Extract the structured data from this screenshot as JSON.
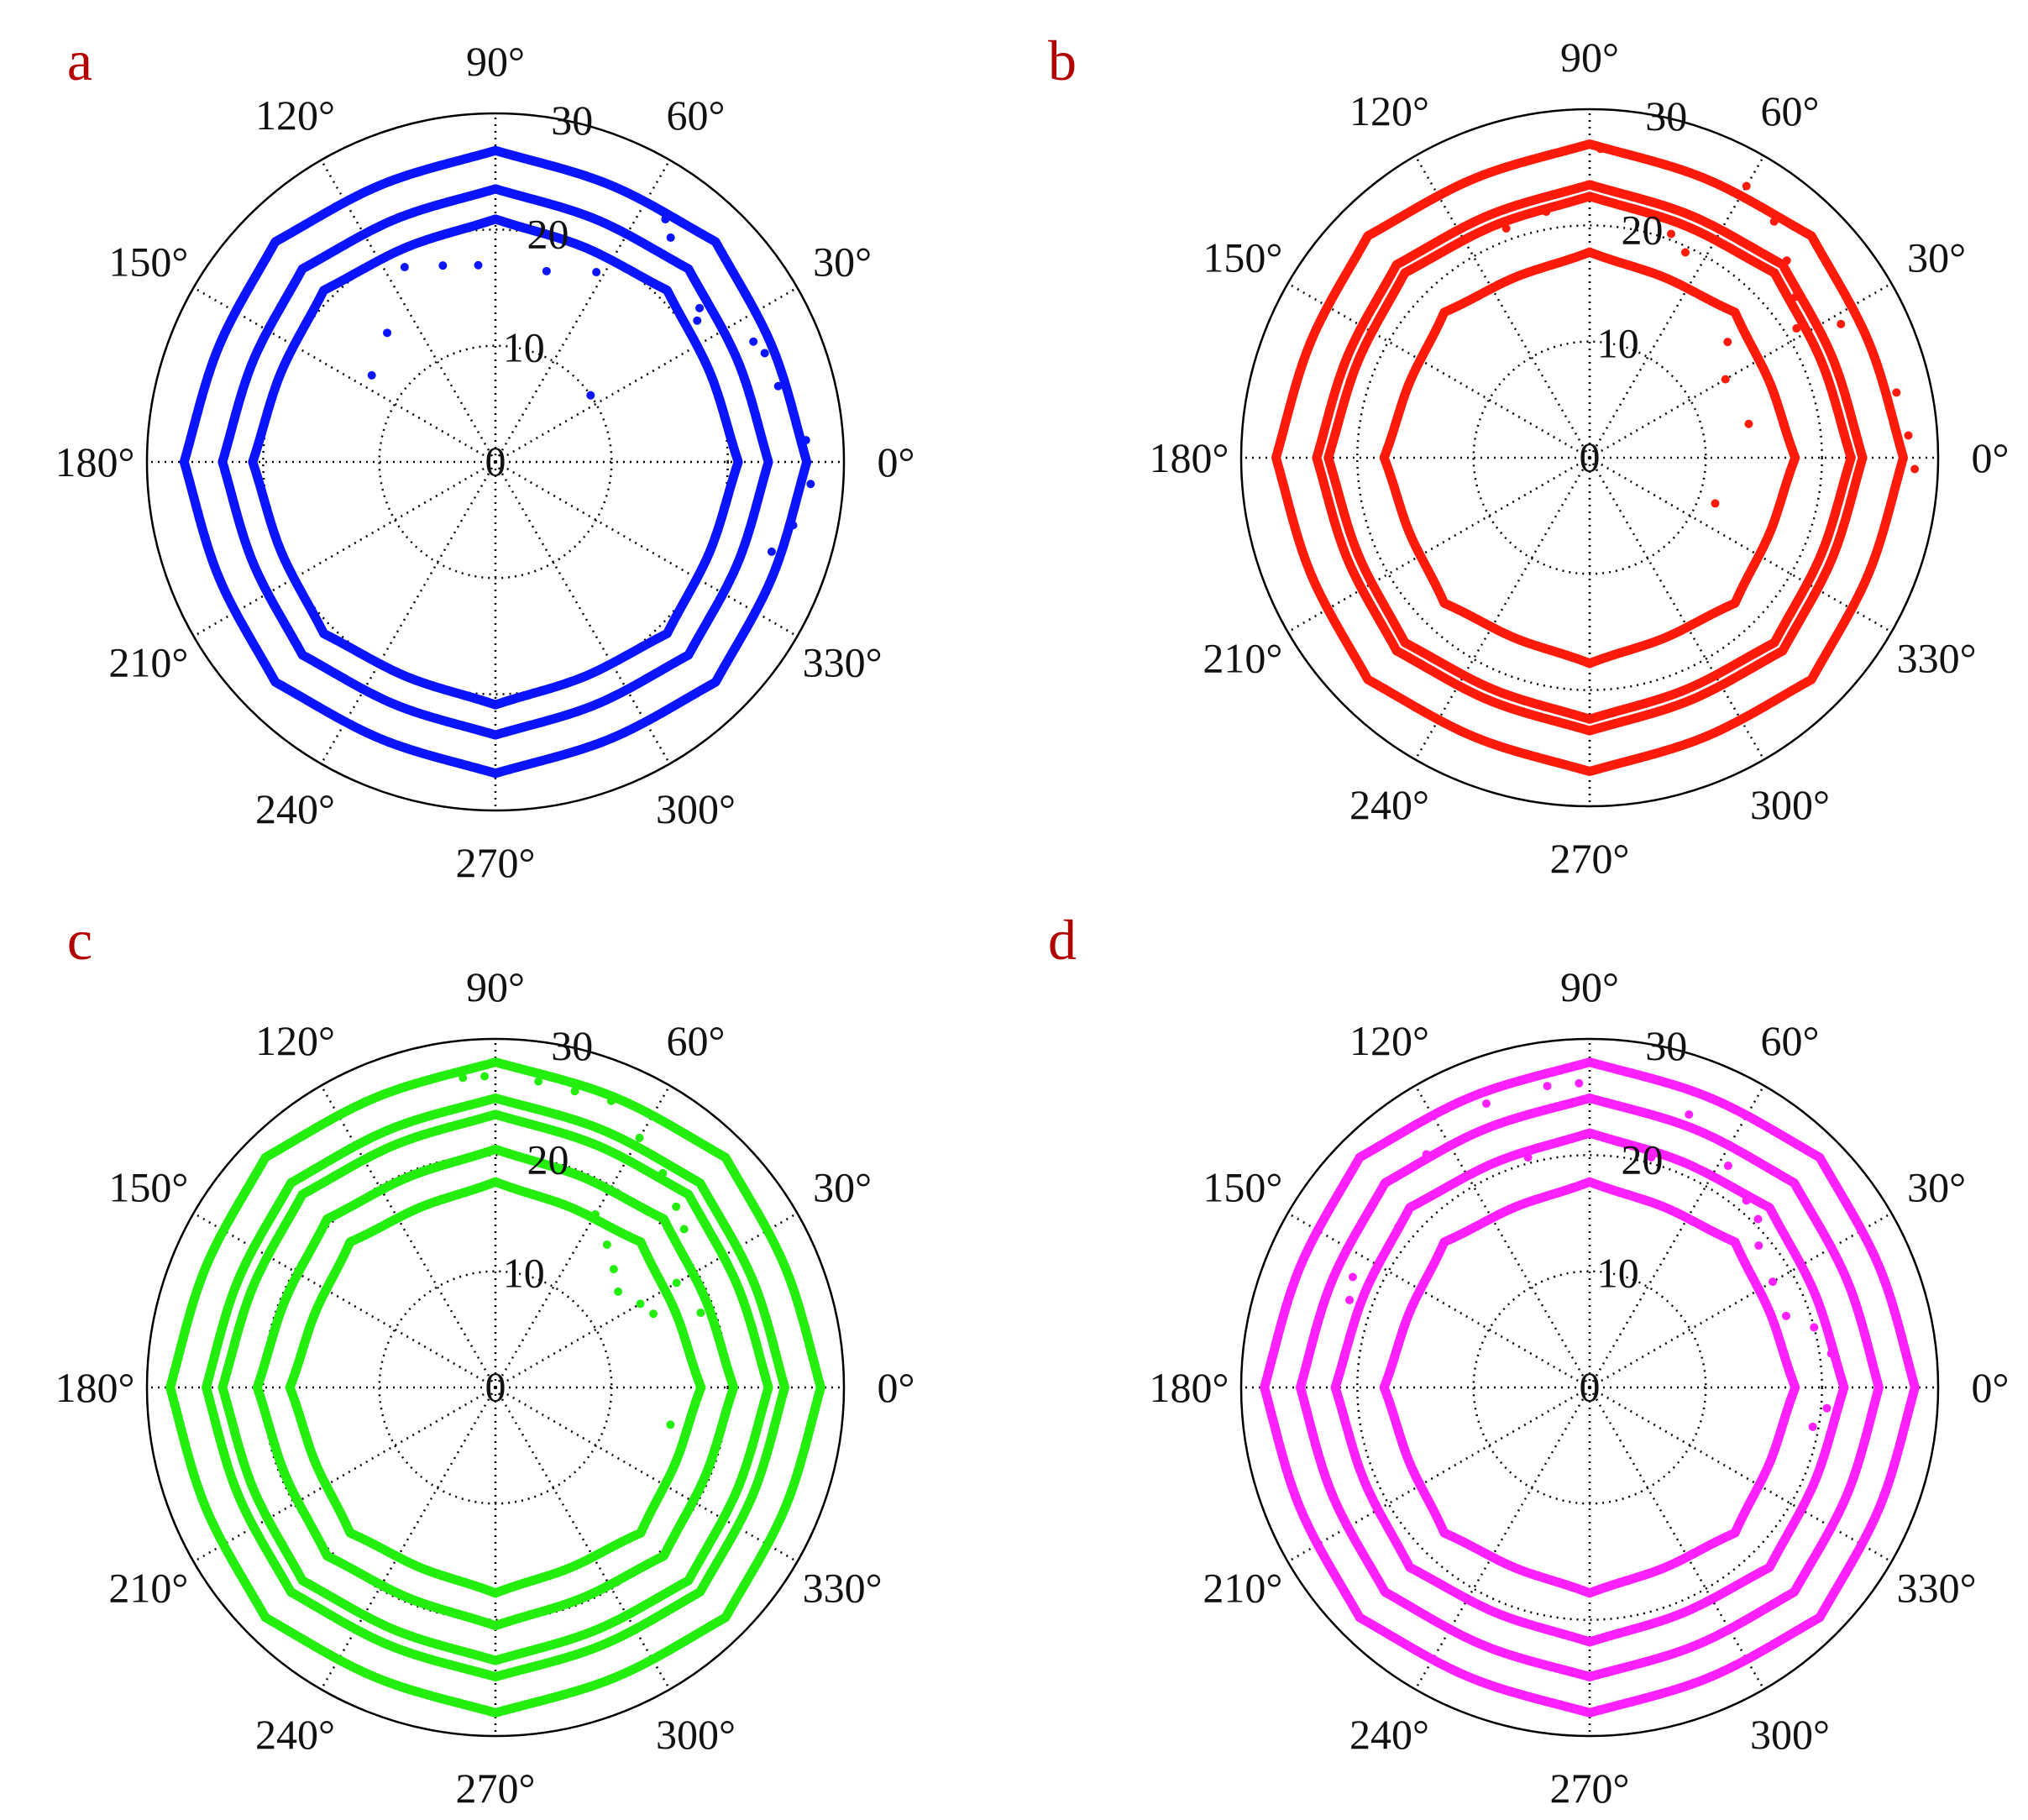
{
  "figure": {
    "panel_letter_color": "#b20000"
  },
  "chart_data": [
    {
      "type": "polar",
      "panel": "a",
      "color": "#0a14ff",
      "title": "",
      "rmax": 30,
      "rticks": [
        0,
        10,
        20,
        30
      ],
      "angle_ticks": [
        "0°",
        "30°",
        "60°",
        "90°",
        "120°",
        "150°",
        "180°",
        "210°",
        "240°",
        "270°",
        "300°",
        "330°"
      ],
      "grid": true,
      "series": [
        {
          "r0": 20.0,
          "amp": 0.9,
          "lobes": 8
        },
        {
          "r0": 22.6,
          "amp": 0.9,
          "lobes": 8
        },
        {
          "r0": 25.8,
          "amp": 1.0,
          "lobes": 8
        }
      ],
      "scatter": [
        {
          "theta": 55,
          "r": 25.5
        },
        {
          "theta": 52,
          "r": 24.5
        },
        {
          "theta": 37,
          "r": 22.0
        },
        {
          "theta": 35,
          "r": 21.2
        },
        {
          "theta": 25,
          "r": 24.5
        },
        {
          "theta": 22,
          "r": 25.0
        },
        {
          "theta": 15,
          "r": 25.2
        },
        {
          "theta": 10,
          "r": 26.0
        },
        {
          "theta": 4,
          "r": 26.8
        },
        {
          "theta": -4,
          "r": 27.2
        },
        {
          "theta": -12,
          "r": 26.2
        },
        {
          "theta": -18,
          "r": 25.0
        },
        {
          "theta": 62,
          "r": 18.5
        },
        {
          "theta": 75,
          "r": 17.0
        },
        {
          "theta": 95,
          "r": 17.0
        },
        {
          "theta": 105,
          "r": 17.5
        },
        {
          "theta": 115,
          "r": 18.5
        },
        {
          "theta": 130,
          "r": 14.5
        },
        {
          "theta": 145,
          "r": 13.0
        },
        {
          "theta": 35,
          "r": 10.0
        }
      ]
    },
    {
      "type": "polar",
      "panel": "b",
      "color": "#ff1a0a",
      "title": "",
      "rmax": 30,
      "rticks": [
        0,
        10,
        20,
        30
      ],
      "angle_ticks": [
        "0°",
        "30°",
        "60°",
        "90°",
        "120°",
        "150°",
        "180°",
        "210°",
        "240°",
        "270°",
        "300°",
        "330°"
      ],
      "grid": true,
      "series": [
        {
          "r0": 16.8,
          "amp": 0.9,
          "lobes": 8
        },
        {
          "r0": 21.6,
          "amp": 0.9,
          "lobes": 8
        },
        {
          "r0": 22.6,
          "amp": 0.9,
          "lobes": 8
        },
        {
          "r0": 26.0,
          "amp": 1.0,
          "lobes": 8
        }
      ],
      "scatter": [
        {
          "theta": 88,
          "r": 26.6
        },
        {
          "theta": 84,
          "r": 26.4
        },
        {
          "theta": 60,
          "r": 27.0
        },
        {
          "theta": 52,
          "r": 25.8
        },
        {
          "theta": 45,
          "r": 24.0
        },
        {
          "theta": 38,
          "r": 22.5
        },
        {
          "theta": 32,
          "r": 21.0
        },
        {
          "theta": 28,
          "r": 24.5
        },
        {
          "theta": 20,
          "r": 26.0
        },
        {
          "theta": 12,
          "r": 27.0
        },
        {
          "theta": 4,
          "r": 27.5
        },
        {
          "theta": -2,
          "r": 28.0
        },
        {
          "theta": 70,
          "r": 20.5
        },
        {
          "theta": 65,
          "r": 19.5
        },
        {
          "theta": 40,
          "r": 15.5
        },
        {
          "theta": 30,
          "r": 13.5
        },
        {
          "theta": 12,
          "r": 14.0
        },
        {
          "theta": -20,
          "r": 11.5
        },
        {
          "theta": 100,
          "r": 21.5
        },
        {
          "theta": 110,
          "r": 21.0
        }
      ]
    },
    {
      "type": "polar",
      "panel": "c",
      "color": "#24ee0e",
      "title": "",
      "rmax": 30,
      "rticks": [
        0,
        10,
        20,
        30
      ],
      "angle_ticks": [
        "0°",
        "30°",
        "60°",
        "90°",
        "120°",
        "150°",
        "180°",
        "210°",
        "240°",
        "270°",
        "300°",
        "330°"
      ],
      "grid": true,
      "series": [
        {
          "r0": 16.8,
          "amp": 0.9,
          "lobes": 8
        },
        {
          "r0": 19.6,
          "amp": 0.9,
          "lobes": 8
        },
        {
          "r0": 22.6,
          "amp": 0.9,
          "lobes": 8
        },
        {
          "r0": 24.0,
          "amp": 0.9,
          "lobes": 8
        },
        {
          "r0": 27.0,
          "amp": 1.0,
          "lobes": 8
        }
      ],
      "scatter": [
        {
          "theta": 96,
          "r": 26.8
        },
        {
          "theta": 92,
          "r": 26.8
        },
        {
          "theta": 82,
          "r": 26.6
        },
        {
          "theta": 75,
          "r": 26.4
        },
        {
          "theta": 68,
          "r": 26.6
        },
        {
          "theta": 60,
          "r": 24.8
        },
        {
          "theta": 52,
          "r": 23.4
        },
        {
          "theta": 45,
          "r": 22.0
        },
        {
          "theta": 40,
          "r": 21.2
        },
        {
          "theta": 60,
          "r": 17.2
        },
        {
          "theta": 52,
          "r": 15.6
        },
        {
          "theta": 45,
          "r": 14.4
        },
        {
          "theta": 38,
          "r": 13.4
        },
        {
          "theta": 30,
          "r": 14.4
        },
        {
          "theta": 25,
          "r": 15.0
        },
        {
          "theta": -12,
          "r": 15.4
        },
        {
          "theta": 30,
          "r": 18.0
        },
        {
          "theta": 20,
          "r": 18.8
        }
      ]
    },
    {
      "type": "polar",
      "panel": "d",
      "color": "#ff20ff",
      "title": "",
      "rmax": 30,
      "rticks": [
        0,
        10,
        20,
        30
      ],
      "angle_ticks": [
        "0°",
        "30°",
        "60°",
        "90°",
        "120°",
        "150°",
        "180°",
        "210°",
        "240°",
        "270°",
        "300°",
        "330°"
      ],
      "grid": true,
      "series": [
        {
          "r0": 16.8,
          "amp": 0.9,
          "lobes": 8
        },
        {
          "r0": 21.0,
          "amp": 0.9,
          "lobes": 8
        },
        {
          "r0": 24.0,
          "amp": 0.9,
          "lobes": 8
        },
        {
          "r0": 27.0,
          "amp": 1.0,
          "lobes": 8
        }
      ],
      "scatter": [
        {
          "theta": 92,
          "r": 26.2
        },
        {
          "theta": 98,
          "r": 26.2
        },
        {
          "theta": 110,
          "r": 26.0
        },
        {
          "theta": 125,
          "r": 24.5
        },
        {
          "theta": 140,
          "r": 21.5
        },
        {
          "theta": 155,
          "r": 22.5
        },
        {
          "theta": 160,
          "r": 22.0
        },
        {
          "theta": 70,
          "r": 25.0
        },
        {
          "theta": 58,
          "r": 22.5
        },
        {
          "theta": 50,
          "r": 21.0
        },
        {
          "theta": 45,
          "r": 20.5
        },
        {
          "theta": 40,
          "r": 19.0
        },
        {
          "theta": 30,
          "r": 18.2
        },
        {
          "theta": 20,
          "r": 18.0
        },
        {
          "theta": 15,
          "r": 20.0
        },
        {
          "theta": 8,
          "r": 21.0
        },
        {
          "theta": -5,
          "r": 20.5
        },
        {
          "theta": -10,
          "r": 19.5
        },
        {
          "theta": 75,
          "r": 20.5
        },
        {
          "theta": 105,
          "r": 20.5
        }
      ]
    }
  ]
}
